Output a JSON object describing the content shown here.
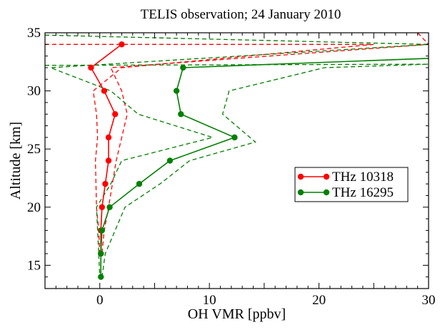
{
  "chart_data": {
    "type": "line",
    "title": "TELIS observation; 24 January 2010",
    "xlabel": "OH VMR [ppbv]",
    "ylabel": "Altitude [km]",
    "xlim": [
      -5,
      30
    ],
    "ylim": [
      13,
      35
    ],
    "x_ticks": [
      0,
      10,
      20,
      30
    ],
    "y_ticks": [
      15,
      20,
      25,
      30,
      35
    ],
    "grid": false,
    "legend_position": "right",
    "series": [
      {
        "name": "THz 10318",
        "color": "#ff0000",
        "x": [
          2.0,
          -0.8,
          0.4,
          1.4,
          0.8,
          0.8,
          0.5,
          0.2,
          0.1,
          0.1
        ],
        "y": [
          34,
          32,
          30,
          28,
          26,
          24,
          22,
          20,
          18,
          16
        ],
        "bounds": [
          {
            "x": [
              -5.0,
              25.0,
              2.0,
              -0.6,
              -0.3,
              -0.2,
              -0.4,
              -0.3,
              -0.1,
              0.0
            ],
            "y": [
              34.0,
              34.0,
              32.0,
              30.0,
              28.0,
              26.0,
              24.0,
              20.0,
              18.0,
              16.0
            ]
          },
          {
            "x": [
              29.0,
              30.0,
              1.0,
              2.0,
              2.5,
              2.0,
              1.5,
              0.8,
              0.4,
              0.2
            ],
            "y": [
              35.0,
              34.0,
              32.0,
              30.0,
              28.0,
              26.0,
              24.0,
              20.0,
              18.0,
              16.0
            ]
          }
        ]
      },
      {
        "name": "THz 16295",
        "color": "#008000",
        "x": [
          30.0,
          7.6,
          7.0,
          7.4,
          12.3,
          6.4,
          3.6,
          0.9,
          0.2,
          0.1,
          0.1
        ],
        "y": [
          32.8,
          32,
          30,
          28,
          26,
          24,
          22,
          20,
          18,
          16,
          14
        ],
        "bounds": [
          {
            "x": [
              -5.0,
              30.0,
              -4.5,
              1.0,
              3.5,
              10.3,
              2.0,
              1.0,
              -0.3,
              -0.1,
              0.0
            ],
            "y": [
              34.8,
              34.0,
              32.0,
              30.0,
              28.0,
              26.0,
              24.0,
              22.0,
              20.0,
              16.0,
              14.0
            ]
          },
          {
            "x": [
              -5.0,
              30.0,
              20.5,
              11.8,
              11.2,
              14.2,
              8.2,
              5.5,
              2.3,
              0.5,
              0.2
            ],
            "y": [
              32.2,
              32.3,
              32.0,
              30.0,
              28.0,
              25.6,
              24.0,
              22.0,
              20.0,
              16.0,
              14.0
            ]
          }
        ]
      }
    ]
  }
}
